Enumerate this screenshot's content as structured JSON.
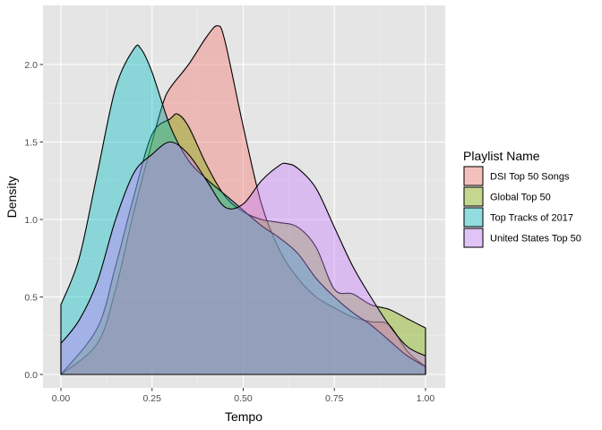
{
  "chart_data": {
    "type": "area",
    "xlabel": "Tempo",
    "ylabel": "Density",
    "xlim": [
      0,
      1
    ],
    "ylim": [
      -0.07,
      2.33
    ],
    "x_ticks": [
      "0.00",
      "0.25",
      "0.50",
      "0.75",
      "1.00"
    ],
    "x_tick_values": [
      0,
      0.25,
      0.5,
      0.75,
      1.0
    ],
    "y_ticks": [
      "0.0",
      "0.5",
      "1.0",
      "1.5",
      "2.0"
    ],
    "y_tick_values": [
      0,
      0.5,
      1.0,
      1.5,
      2.0
    ],
    "grid": true,
    "background": "#e5e5e5",
    "legend": {
      "title": "Playlist Name",
      "placement": "right"
    },
    "series": [
      {
        "name": "DSI Top 50 Songs",
        "color": "#f8766d",
        "x": [
          0.0,
          0.1,
          0.15,
          0.2,
          0.25,
          0.28,
          0.3,
          0.35,
          0.4,
          0.43,
          0.45,
          0.5,
          0.55,
          0.6,
          0.65,
          0.7,
          0.75,
          0.8,
          0.85,
          0.9,
          0.95,
          1.0
        ],
        "y": [
          0.0,
          0.2,
          0.55,
          1.05,
          1.5,
          1.75,
          1.85,
          2.0,
          2.18,
          2.25,
          2.15,
          1.6,
          1.1,
          0.8,
          0.62,
          0.5,
          0.43,
          0.37,
          0.34,
          0.32,
          0.15,
          0.05
        ]
      },
      {
        "name": "Global Top 50",
        "color": "#7cae00",
        "x": [
          0.0,
          0.1,
          0.15,
          0.2,
          0.25,
          0.3,
          0.32,
          0.35,
          0.4,
          0.45,
          0.5,
          0.55,
          0.6,
          0.65,
          0.7,
          0.75,
          0.8,
          0.85,
          0.9,
          0.95,
          1.0
        ],
        "y": [
          0.0,
          0.3,
          0.7,
          1.15,
          1.55,
          1.65,
          1.68,
          1.6,
          1.35,
          1.15,
          1.05,
          1.0,
          0.98,
          0.95,
          0.82,
          0.55,
          0.52,
          0.45,
          0.42,
          0.36,
          0.3
        ]
      },
      {
        "name": "Top Tracks of 2017",
        "color": "#00bfc4",
        "x": [
          0.0,
          0.05,
          0.1,
          0.15,
          0.2,
          0.22,
          0.25,
          0.3,
          0.35,
          0.4,
          0.45,
          0.5,
          0.55,
          0.6,
          0.65,
          0.7,
          0.75,
          0.8,
          0.85,
          0.9,
          0.95,
          1.0
        ],
        "y": [
          0.45,
          0.75,
          1.3,
          1.85,
          2.1,
          2.1,
          1.95,
          1.6,
          1.38,
          1.26,
          1.16,
          1.06,
          0.96,
          0.88,
          0.78,
          0.62,
          0.5,
          0.4,
          0.32,
          0.22,
          0.12,
          0.05
        ]
      },
      {
        "name": "United States Top 50",
        "color": "#c77cff",
        "x": [
          0.0,
          0.05,
          0.1,
          0.15,
          0.2,
          0.25,
          0.3,
          0.35,
          0.4,
          0.45,
          0.5,
          0.55,
          0.6,
          0.62,
          0.65,
          0.7,
          0.75,
          0.8,
          0.85,
          0.9,
          0.95,
          1.0
        ],
        "y": [
          0.2,
          0.35,
          0.6,
          1.0,
          1.3,
          1.42,
          1.5,
          1.42,
          1.25,
          1.08,
          1.1,
          1.25,
          1.35,
          1.36,
          1.33,
          1.2,
          0.95,
          0.7,
          0.5,
          0.32,
          0.18,
          0.12
        ]
      }
    ]
  }
}
